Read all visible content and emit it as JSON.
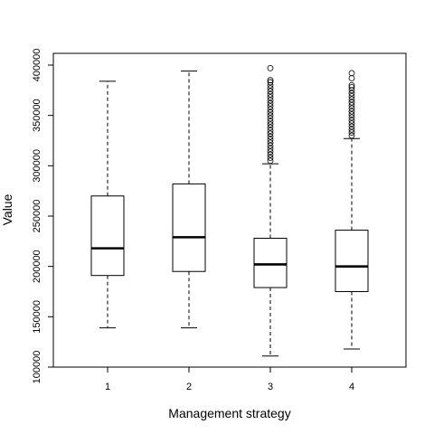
{
  "chart_data": {
    "type": "boxplot",
    "title": "",
    "xlabel": "Management strategy",
    "ylabel": "Value",
    "ylim": [
      100000,
      400000
    ],
    "yticks": [
      100000,
      150000,
      200000,
      250000,
      300000,
      350000,
      400000
    ],
    "yticks_labels": [
      "100000",
      "150000",
      "200000",
      "250000",
      "300000",
      "350000",
      "400000"
    ],
    "categories": [
      "1",
      "2",
      "3",
      "4"
    ],
    "boxes": [
      {
        "whisker_low": 139000,
        "q1": 191000,
        "median": 218000,
        "q3": 270000,
        "whisker_high": 384000,
        "outliers": []
      },
      {
        "whisker_low": 139000,
        "q1": 195000,
        "median": 229000,
        "q3": 282000,
        "whisker_high": 394000,
        "outliers": []
      },
      {
        "whisker_low": 111000,
        "q1": 179000,
        "median": 202000,
        "q3": 228000,
        "whisker_high": 302000,
        "outliers": [
          305000,
          308000,
          311000,
          314000,
          317000,
          320000,
          323000,
          326000,
          329000,
          332000,
          335000,
          338000,
          341000,
          344000,
          347000,
          350000,
          353000,
          356000,
          359000,
          362000,
          365000,
          368000,
          371000,
          374000,
          377000,
          380000,
          383000,
          385000,
          397000
        ]
      },
      {
        "whisker_low": 118000,
        "q1": 175000,
        "median": 200000,
        "q3": 236000,
        "whisker_high": 327000,
        "outliers": [
          330000,
          333000,
          336000,
          339000,
          342000,
          345000,
          348000,
          351000,
          354000,
          357000,
          360000,
          363000,
          366000,
          369000,
          372000,
          375000,
          378000,
          380000,
          387000,
          392000
        ]
      }
    ],
    "grid": false,
    "colors": {
      "box": "#000000",
      "median": "#000000",
      "background": "#ffffff"
    }
  }
}
